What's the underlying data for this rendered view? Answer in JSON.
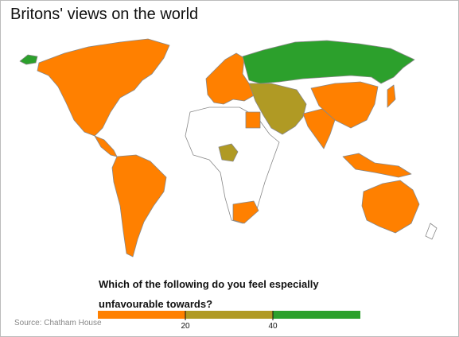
{
  "title": "Britons' views on the world",
  "legend": {
    "question": "Which of the following do you feel especially unfavourable towards?",
    "lim": [
      0,
      60
    ],
    "ticks": [
      20,
      40
    ],
    "colors": [
      "#ff8000",
      "#b09a24",
      "#2ca02c"
    ]
  },
  "source": "Source: Chatham House"
}
